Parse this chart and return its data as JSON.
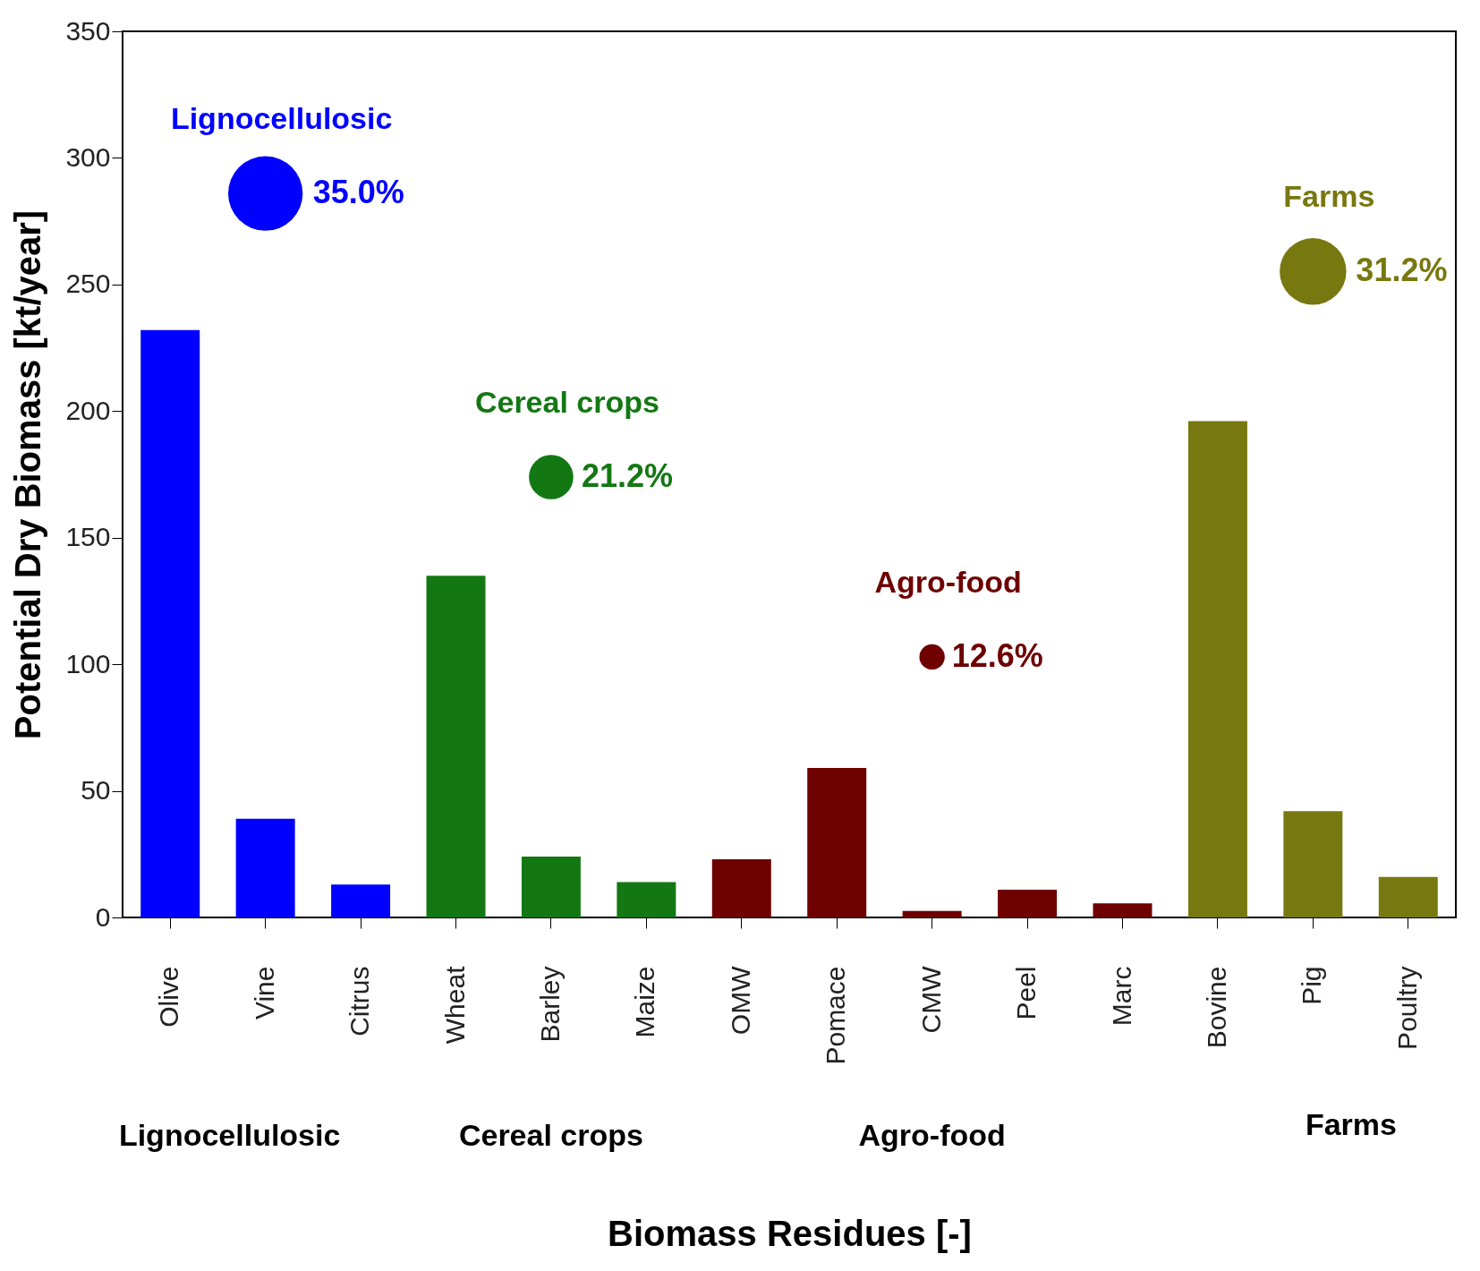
{
  "chart_data": {
    "type": "bar",
    "xlabel": "Biomass Residues [-]",
    "ylabel": "Potential Dry Biomass [kt/year]",
    "categories": [
      "Olive",
      "Vine",
      "Citrus",
      "Wheat",
      "Barley",
      "Maize",
      "OMW",
      "Pomace",
      "CMW",
      "Peel",
      "Marc",
      "Bovine",
      "Pig",
      "Poultry"
    ],
    "ylim": [
      0,
      350
    ],
    "yticks": [
      0,
      50,
      100,
      150,
      200,
      250,
      300,
      350
    ],
    "grid": false,
    "series": [
      {
        "colors": [
          "#0000ff",
          "#0000ff",
          "#0000ff",
          "#137813",
          "#137813",
          "#137813",
          "#6e0000",
          "#6e0000",
          "#6e0000",
          "#6e0000",
          "#6e0000",
          "#787810",
          "#787810",
          "#787810"
        ],
        "values": [
          232,
          39,
          13,
          135,
          24,
          14,
          23,
          59,
          2.6,
          11,
          5.6,
          196,
          42,
          16
        ]
      }
    ],
    "annotations": [
      "Lignocellulosic",
      "35.0%",
      "Cereal crops",
      "21.2%",
      "Agro-food",
      "12.6%",
      "Farms",
      "31.2%",
      "Lignocellulosic",
      "Cereal crops",
      "Agro-food",
      "Farms"
    ]
  }
}
